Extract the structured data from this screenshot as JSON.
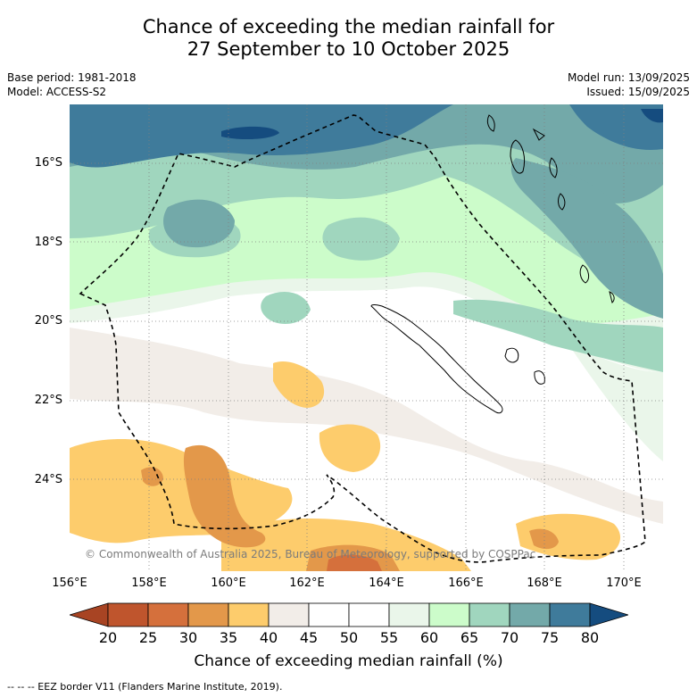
{
  "header": {
    "title_line1": "Chance of exceeding the median rainfall for",
    "title_line2": "27 September to 10 October 2025",
    "base_period": "Base period: 1981-2018",
    "model": "Model: ACCESS-S2",
    "model_run": "Model run: 13/09/2025",
    "issued": "Issued: 15/09/2025"
  },
  "map": {
    "region": "New Caledonia and surrounding waters",
    "lat_labels": [
      "16°S",
      "18°S",
      "20°S",
      "22°S",
      "24°S"
    ],
    "lon_labels": [
      "156°E",
      "158°E",
      "160°E",
      "162°E",
      "164°E",
      "166°E",
      "168°E",
      "170°E"
    ],
    "lon_range": [
      156,
      171
    ],
    "lat_range": [
      -14.7,
      -26.5
    ],
    "gridlines": "dotted",
    "copyright": "© Commonwealth of Australia 2025, Bureau of Meteorology, supported by COSPPac"
  },
  "colorbar": {
    "title": "Chance of exceeding median rainfall (%)",
    "ticks": [
      "20",
      "25",
      "30",
      "35",
      "40",
      "45",
      "50",
      "55",
      "60",
      "65",
      "70",
      "75",
      "80"
    ],
    "colors": [
      "#a84423",
      "#bf552d",
      "#d5703c",
      "#e3984a",
      "#fdcc6c",
      "#f2ede8",
      "#ffffff",
      "#ffffff",
      "#eaf6ea",
      "#ccfcca",
      "#a0d6be",
      "#73a9a9",
      "#3f7b9b",
      "#154c7f"
    ]
  },
  "legend": {
    "eez_note": "--  --  -- EEZ border V11 (Flanders Marine Institute, 2019)."
  }
}
